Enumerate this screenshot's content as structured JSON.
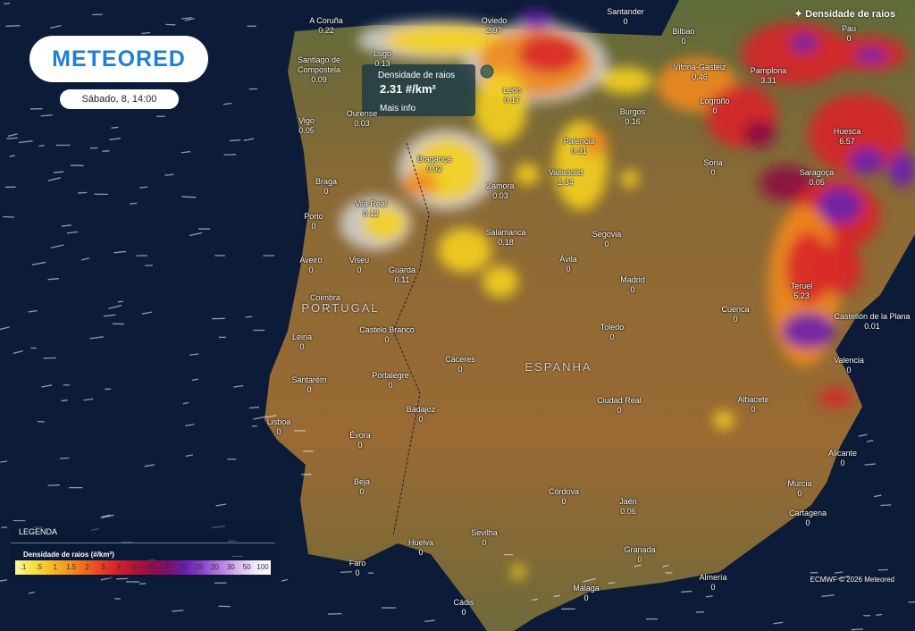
{
  "header": {
    "logo": "METEORED",
    "date": "Sábado, 8, 14:00",
    "layer": "Densidade de raios"
  },
  "tooltip": {
    "title": "Densidade de raios",
    "value": "2.31 #/km²",
    "link": "Mais info"
  },
  "countries": [
    "PORTUGAL",
    "ESPANHA"
  ],
  "cities": [
    {
      "name": "A Coruña",
      "value": 0.22
    },
    {
      "name": "Oviedo",
      "value": 2.97
    },
    {
      "name": "Santander",
      "value": 0
    },
    {
      "name": "Bilbao",
      "value": 0
    },
    {
      "name": "Pau",
      "value": 0
    },
    {
      "name": "Lugo",
      "value": 0.13
    },
    {
      "name": "Santiago de Compostela",
      "value": 0.09
    },
    {
      "name": "Ourense",
      "value": 0.03
    },
    {
      "name": "León",
      "value": 0.17
    },
    {
      "name": "Vitoria-Gasteiz",
      "value": 0.46
    },
    {
      "name": "Pamplona",
      "value": 3.31
    },
    {
      "name": "Logroño",
      "value": 0
    },
    {
      "name": "Burgos",
      "value": 0.16
    },
    {
      "name": "Vigo",
      "value": 0.05
    },
    {
      "name": "Huesca",
      "value": 6.57
    },
    {
      "name": "Palencia",
      "value": 0.31
    },
    {
      "name": "Soria",
      "value": 0
    },
    {
      "name": "Bragança",
      "value": 0.92
    },
    {
      "name": "Valladolid",
      "value": 1.34
    },
    {
      "name": "Braga",
      "value": 0
    },
    {
      "name": "Saragoça",
      "value": 0.05
    },
    {
      "name": "Vila Real",
      "value": 0.12
    },
    {
      "name": "Zamora",
      "value": 0.03
    },
    {
      "name": "Porto",
      "value": 0
    },
    {
      "name": "Salamanca",
      "value": 0.18
    },
    {
      "name": "Segovia",
      "value": 0
    },
    {
      "name": "Aveiro",
      "value": 0
    },
    {
      "name": "Viseu",
      "value": 0
    },
    {
      "name": "Guarda",
      "value": 0.11
    },
    {
      "name": "Ávila",
      "value": 0
    },
    {
      "name": "Madrid",
      "value": 0
    },
    {
      "name": "Teruel",
      "value": 5.23
    },
    {
      "name": "Coimbra",
      "value": 0
    },
    {
      "name": "Cuenca",
      "value": 0
    },
    {
      "name": "Castellón de la Plana",
      "value": 0.01
    },
    {
      "name": "Toledo",
      "value": 0
    },
    {
      "name": "Castelo Branco",
      "value": 0
    },
    {
      "name": "Leiria",
      "value": 0
    },
    {
      "name": "Cáceres",
      "value": 0
    },
    {
      "name": "Valencia",
      "value": 0
    },
    {
      "name": "Portalegre",
      "value": 0
    },
    {
      "name": "Santarém",
      "value": 0
    },
    {
      "name": "Ciudad Real",
      "value": 0
    },
    {
      "name": "Albacete",
      "value": 0
    },
    {
      "name": "Badajoz",
      "value": 0
    },
    {
      "name": "Lisboa",
      "value": 0
    },
    {
      "name": "Évora",
      "value": 0
    },
    {
      "name": "Alicante",
      "value": 0
    },
    {
      "name": "Beja",
      "value": 0
    },
    {
      "name": "Murcia",
      "value": 0
    },
    {
      "name": "Córdova",
      "value": 0
    },
    {
      "name": "Jaén",
      "value": 0.06
    },
    {
      "name": "Cartagena",
      "value": 0
    },
    {
      "name": "Sevilha",
      "value": 0
    },
    {
      "name": "Huelva",
      "value": 0
    },
    {
      "name": "Granada",
      "value": 0
    },
    {
      "name": "Faro",
      "value": 0
    },
    {
      "name": "Almería",
      "value": 0
    },
    {
      "name": "Málaga",
      "value": 0
    },
    {
      "name": "Cádis",
      "value": 0
    }
  ],
  "legend": {
    "title": "LEGENDA",
    "subtitle": "Densidade de raios (#/km²)",
    "scale": [
      ".1",
      ".5",
      "1",
      "1.5",
      "2",
      "3",
      "4",
      "5",
      "6",
      "8",
      "10",
      "15",
      "20",
      "30",
      "50",
      "100"
    ]
  },
  "credit": "ECMWF © 2026 Meteored"
}
